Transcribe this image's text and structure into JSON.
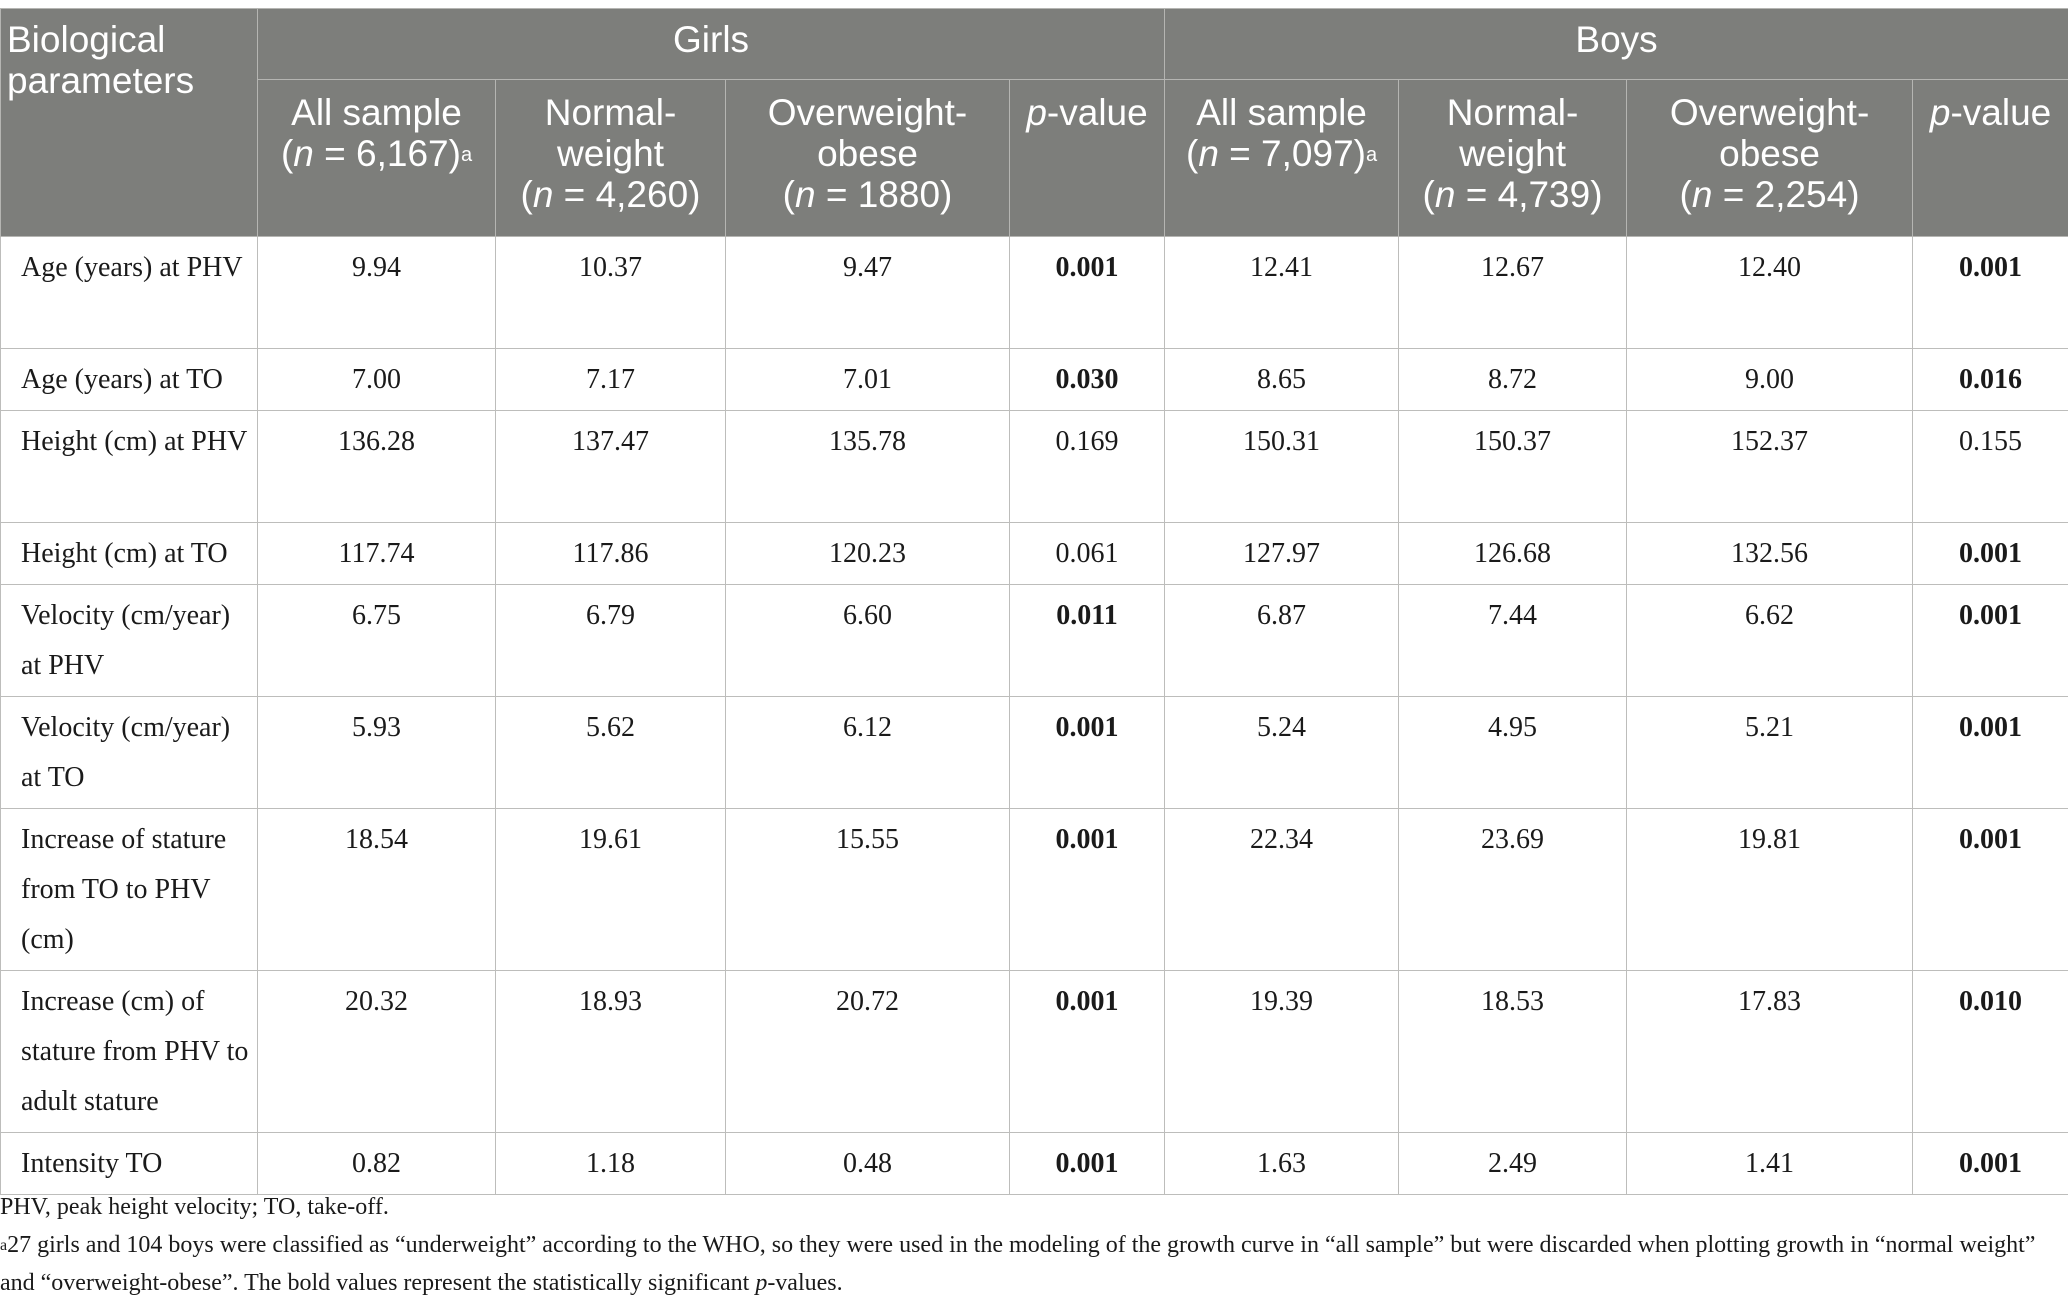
{
  "header": {
    "corner": "Biological parameters",
    "groups": [
      "Girls",
      "Boys"
    ],
    "columns": [
      {
        "line1": "All sample",
        "n_prefix": "n",
        "n_value": " = 6,167)",
        "open": "(",
        "footnote": "a"
      },
      {
        "line1": "Normal-weight",
        "n_prefix": "n",
        "n_value": " = 4,260)",
        "open": "(",
        "footnote": ""
      },
      {
        "line1": "Overweight-obese",
        "n_prefix": "n",
        "n_value": " = 1880)",
        "open": "(",
        "footnote": ""
      },
      {
        "line1": "p",
        "line2": "-value"
      },
      {
        "line1": "All sample",
        "n_prefix": "n",
        "n_value": " = 7,097)",
        "open": "(",
        "footnote": "a"
      },
      {
        "line1": "Normal-weight",
        "n_prefix": "n",
        "n_value": " = 4,739)",
        "open": "(",
        "footnote": ""
      },
      {
        "line1": "Overweight-obese",
        "n_prefix": "n",
        "n_value": " = 2,254)",
        "open": "(",
        "footnote": ""
      },
      {
        "line1": "p",
        "line2": "-value"
      }
    ]
  },
  "rows": [
    {
      "label": "Age (years) at PHV",
      "values": [
        "9.94",
        "10.37",
        "9.47",
        "0.001",
        "12.41",
        "12.67",
        "12.40",
        "0.001"
      ],
      "bold": [
        false,
        false,
        false,
        true,
        false,
        false,
        false,
        true
      ]
    },
    {
      "label": "Age (years) at TO",
      "values": [
        "7.00",
        "7.17",
        "7.01",
        "0.030",
        "8.65",
        "8.72",
        "9.00",
        "0.016"
      ],
      "bold": [
        false,
        false,
        false,
        true,
        false,
        false,
        false,
        true
      ]
    },
    {
      "label": "Height (cm) at PHV",
      "values": [
        "136.28",
        "137.47",
        "135.78",
        "0.169",
        "150.31",
        "150.37",
        "152.37",
        "0.155"
      ],
      "bold": [
        false,
        false,
        false,
        false,
        false,
        false,
        false,
        false
      ]
    },
    {
      "label": "Height (cm) at TO",
      "values": [
        "117.74",
        "117.86",
        "120.23",
        "0.061",
        "127.97",
        "126.68",
        "132.56",
        "0.001"
      ],
      "bold": [
        false,
        false,
        false,
        false,
        false,
        false,
        false,
        true
      ]
    },
    {
      "label": "Velocity (cm/year) at PHV",
      "values": [
        "6.75",
        "6.79",
        "6.60",
        "0.011",
        "6.87",
        "7.44",
        "6.62",
        "0.001"
      ],
      "bold": [
        false,
        false,
        false,
        true,
        false,
        false,
        false,
        true
      ]
    },
    {
      "label": "Velocity (cm/year) at TO",
      "values": [
        "5.93",
        "5.62",
        "6.12",
        "0.001",
        "5.24",
        "4.95",
        "5.21",
        "0.001"
      ],
      "bold": [
        false,
        false,
        false,
        true,
        false,
        false,
        false,
        true
      ]
    },
    {
      "label": "Increase of stature from TO to PHV (cm)",
      "values": [
        "18.54",
        "19.61",
        "15.55",
        "0.001",
        "22.34",
        "23.69",
        "19.81",
        "0.001"
      ],
      "bold": [
        false,
        false,
        false,
        true,
        false,
        false,
        false,
        true
      ]
    },
    {
      "label": "Increase (cm) of stature from PHV to adult stature",
      "values": [
        "20.32",
        "18.93",
        "20.72",
        "0.001",
        "19.39",
        "18.53",
        "17.83",
        "0.010"
      ],
      "bold": [
        false,
        false,
        false,
        true,
        false,
        false,
        false,
        true
      ]
    },
    {
      "label": "Intensity TO",
      "values": [
        "0.82",
        "1.18",
        "0.48",
        "0.001",
        "1.63",
        "2.49",
        "1.41",
        "0.001"
      ],
      "bold": [
        false,
        false,
        false,
        true,
        false,
        false,
        false,
        true
      ]
    }
  ],
  "footnotes": {
    "abbrev": "PHV, peak height velocity; TO, take-off.",
    "a_marker": "a",
    "a_text_1": "27 girls and 104 boys were classified as “underweight” according to the WHO, so they were used in the modeling of the growth curve in “all sample” but were discarded when plotting growth in “normal weight” and “overweight-obese”. The bold values represent the statistically significant ",
    "a_text_p": "p",
    "a_text_2": "-values."
  },
  "colors": {
    "header_bg": "#7d7e7b",
    "header_text": "#ffffff",
    "grid": "#bdbdbb"
  }
}
